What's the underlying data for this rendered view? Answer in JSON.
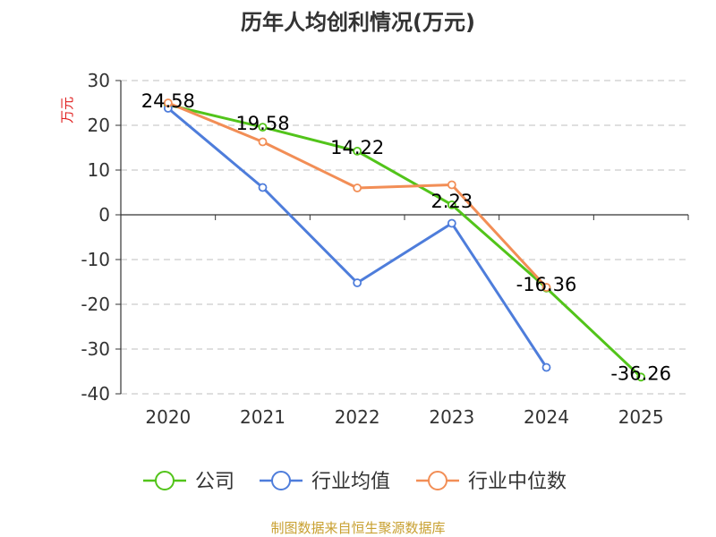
{
  "chart_data": {
    "type": "line",
    "title": "历年人均创利情况(万元)",
    "ylabel": "万元",
    "xlabel": "",
    "categories": [
      "2020",
      "2021",
      "2022",
      "2023",
      "2024",
      "2025"
    ],
    "yticks": [
      "30",
      "20",
      "10",
      "0",
      "-10",
      "-20",
      "-30",
      "-40"
    ],
    "ylim": [
      -40,
      30
    ],
    "grid": true,
    "legend_position": "bottom",
    "series": [
      {
        "name": "公司",
        "color": "#52c41a",
        "values": [
          24.58,
          19.58,
          14.22,
          2.23,
          -16.36,
          -36.26
        ],
        "show_labels": true
      },
      {
        "name": "行业均值",
        "color": "#4e7ddb",
        "values": [
          23.8,
          6.1,
          -15.2,
          -1.9,
          -34.1,
          null
        ],
        "show_labels": false
      },
      {
        "name": "行业中位数",
        "color": "#f28e56",
        "values": [
          25.0,
          16.3,
          6.0,
          6.7,
          -16.2,
          null
        ],
        "show_labels": false
      }
    ],
    "data_labels": [
      "24.58",
      "19.58",
      "14.22",
      "2.23",
      "-16.36",
      "-36.26"
    ],
    "source": "制图数据来自恒生聚源数据库",
    "colors": {
      "axis": "#333333",
      "grid": "#cccccc",
      "ylabel": "#e02020",
      "source": "#c8a030"
    }
  }
}
